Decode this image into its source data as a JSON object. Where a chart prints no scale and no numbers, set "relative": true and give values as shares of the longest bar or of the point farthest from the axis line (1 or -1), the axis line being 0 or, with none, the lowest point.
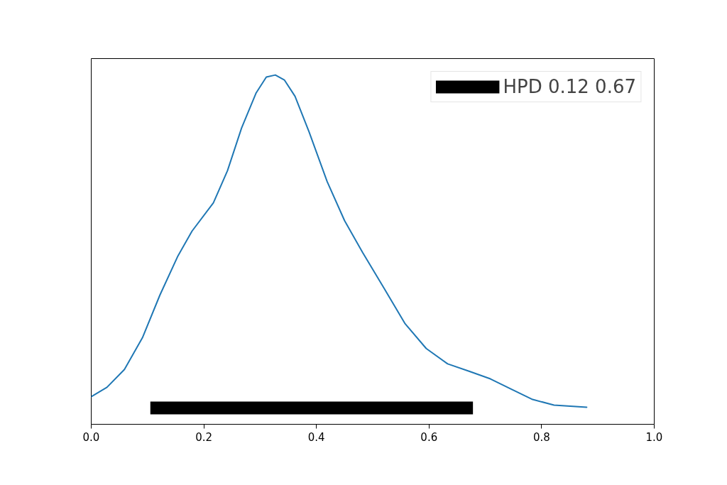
{
  "chart_data": {
    "type": "line",
    "relative": true,
    "xlim": [
      0,
      1
    ],
    "xticks": [
      {
        "value": 0,
        "label": "0.0"
      },
      {
        "value": 0.2,
        "label": "0.2"
      },
      {
        "value": 0.4,
        "label": "0.4"
      },
      {
        "value": 0.6,
        "label": "0.6"
      },
      {
        "value": 0.8,
        "label": "0.8"
      },
      {
        "value": 1,
        "label": "1.0"
      }
    ],
    "tick_labels": "x",
    "grid": false,
    "legend": "top right",
    "series": [
      {
        "color": "#1f77b4",
        "x": [
          0,
          0.028,
          0.059,
          0.091,
          0.122,
          0.154,
          0.179,
          0.217,
          0.242,
          0.267,
          0.293,
          0.311,
          0.327,
          0.343,
          0.362,
          0.387,
          0.419,
          0.45,
          0.482,
          0.52,
          0.557,
          0.595,
          0.633,
          0.671,
          0.709,
          0.747,
          0.784,
          0.822,
          0.88
        ],
        "values": [
          0.079,
          0.106,
          0.157,
          0.248,
          0.37,
          0.482,
          0.553,
          0.634,
          0.726,
          0.848,
          0.949,
          0.994,
          1.0,
          0.986,
          0.939,
          0.837,
          0.695,
          0.583,
          0.492,
          0.39,
          0.289,
          0.217,
          0.173,
          0.152,
          0.13,
          0.1,
          0.071,
          0.055,
          0.049
        ]
      },
      {
        "name": "HPD 0.12 0.67",
        "color": "#000000",
        "x": [
          0.105,
          0.678
        ],
        "values": [
          0.047,
          0.047
        ]
      }
    ]
  }
}
